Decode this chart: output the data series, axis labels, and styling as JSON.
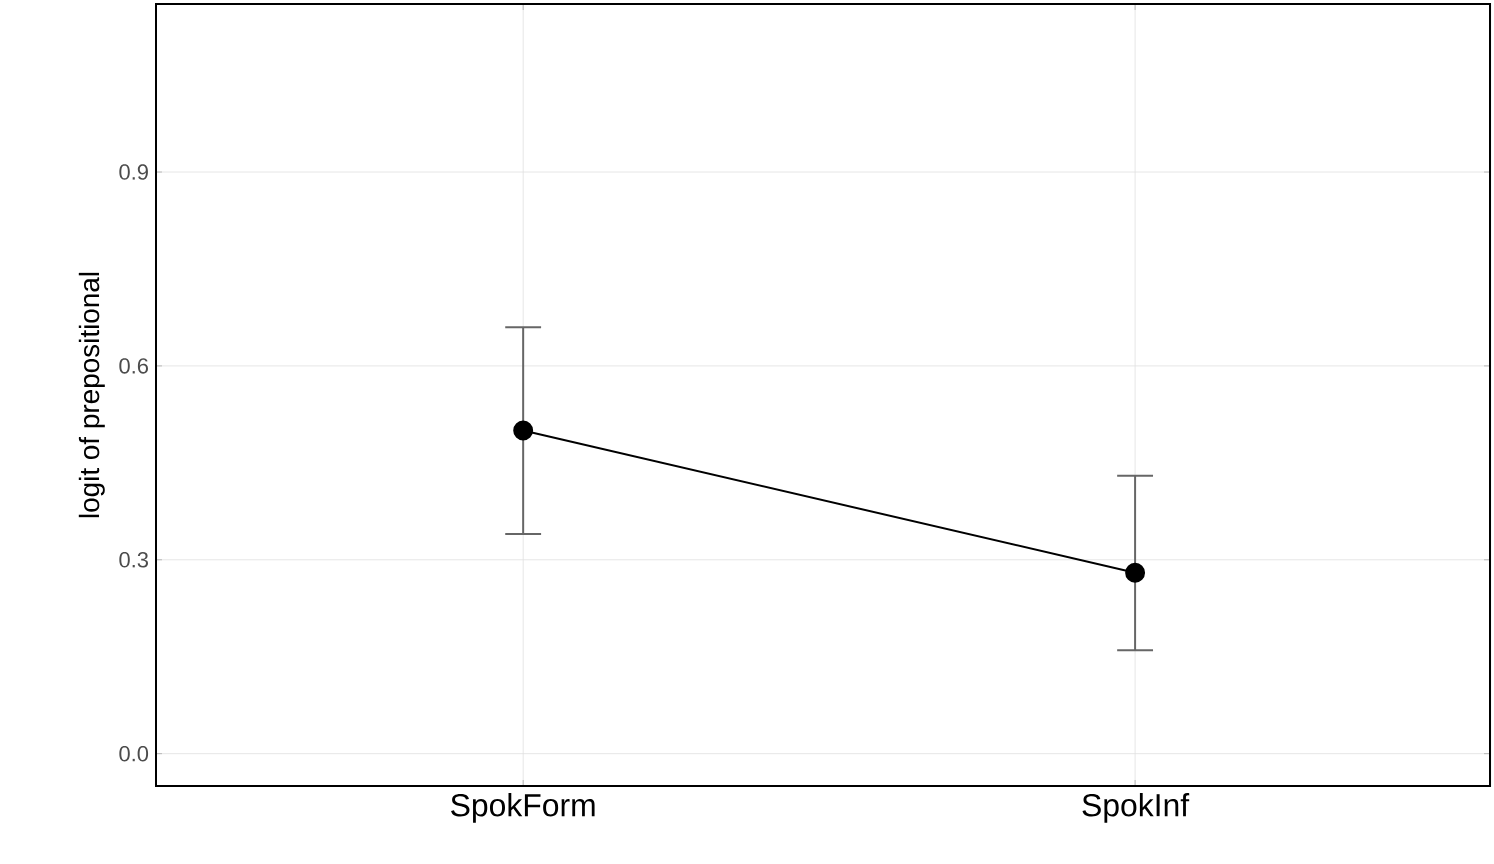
{
  "chart_data": {
    "type": "line",
    "ylabel": "logit of prepositional",
    "categories": [
      "SpokForm",
      "SpokInf"
    ],
    "series": [
      {
        "color": "#000000",
        "values": [
          0.5,
          0.28
        ],
        "errors": [
          [
            0.34,
            0.66
          ],
          [
            0.16,
            0.43
          ]
        ]
      }
    ],
    "ylim": [
      -0.05,
      1.16
    ],
    "yticks": [
      {
        "value": 0,
        "label": "0.0"
      },
      0.3,
      0.6,
      0.9
    ],
    "grid": true,
    "marker": "circle",
    "line_style": "solid"
  }
}
